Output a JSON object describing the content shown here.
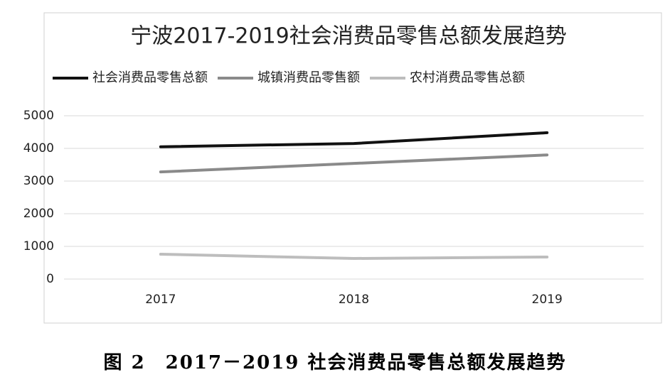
{
  "chart_data": {
    "type": "line",
    "title": "宁波2017-2019社会消费品零售总额发展趋势",
    "caption": "图 2　2017－2019 社会消费品零售总额发展趋势",
    "categories": [
      "2017",
      "2018",
      "2019"
    ],
    "series": [
      {
        "name": "社会消费品零售总额",
        "color": "#111111",
        "values": [
          4050,
          4150,
          4480
        ]
      },
      {
        "name": "城镇消费品零售额",
        "color": "#8a8a8a",
        "values": [
          3280,
          3540,
          3800
        ]
      },
      {
        "name": "农村消费品零售总额",
        "color": "#bdbdbd",
        "values": [
          760,
          630,
          675
        ]
      }
    ],
    "ylim": [
      0,
      5000
    ],
    "yticks": [
      0,
      1000,
      2000,
      3000,
      4000,
      5000
    ],
    "grid": true,
    "legend": "top"
  }
}
